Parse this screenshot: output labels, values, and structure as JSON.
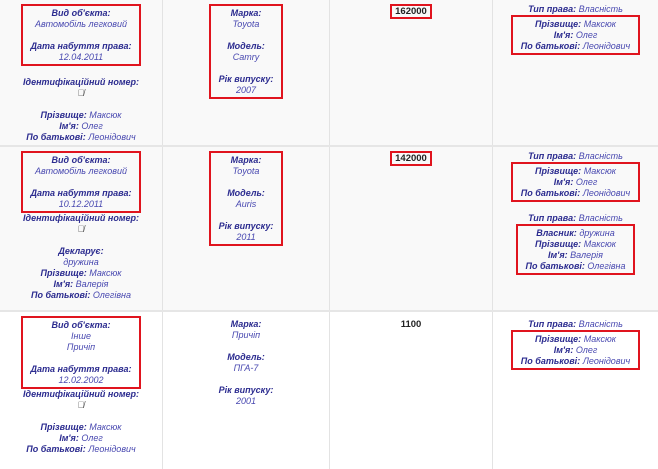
{
  "rows": [
    {
      "cells": [
        [
          {
            "box": true,
            "items": [
              {
                "t": "s",
                "l": "Вид об'єкта:",
                "v": [
                  "Автомобіль легковий"
                ]
              },
              {
                "t": "gap"
              },
              {
                "t": "s",
                "l": "Дата набуття права:",
                "v": [
                  "12.04.2011"
                ]
              }
            ]
          },
          {
            "items": [
              {
                "t": "gap"
              },
              {
                "t": "s",
                "l": "Ідентифікаційний номер:",
                "v": []
              },
              {
                "t": "icon",
                "icon": "hidden-eye-icon"
              },
              {
                "t": "gap"
              },
              {
                "t": "i",
                "l": "Прізвище:",
                "v": "Максюк"
              },
              {
                "t": "i",
                "l": "Ім'я:",
                "v": "Олег"
              },
              {
                "t": "i",
                "l": "По батькові:",
                "v": "Леонідович"
              }
            ]
          }
        ],
        [
          {
            "box": true,
            "items": [
              {
                "t": "s",
                "l": "Марка:",
                "v": [
                  "Toyota"
                ]
              },
              {
                "t": "gap"
              },
              {
                "t": "s",
                "l": "Модель:",
                "v": [
                  "Camry"
                ]
              },
              {
                "t": "gap"
              },
              {
                "t": "s",
                "l": "Рік випуску:",
                "v": [
                  "2007"
                ]
              }
            ]
          }
        ],
        [
          {
            "box": true,
            "nb": true,
            "items": [
              {
                "t": "num",
                "v": "162000"
              }
            ]
          }
        ],
        [
          {
            "items": [
              {
                "t": "i",
                "l": "Тип права:",
                "v": "Власність"
              }
            ]
          },
          {
            "box": true,
            "items": [
              {
                "t": "i",
                "l": "Прізвище:",
                "v": "Максюк"
              },
              {
                "t": "i",
                "l": "Ім'я:",
                "v": "Олег"
              },
              {
                "t": "i",
                "l": "По батькові:",
                "v": "Леонідович"
              }
            ]
          }
        ]
      ]
    },
    {
      "cells": [
        [
          {
            "box": true,
            "items": [
              {
                "t": "s",
                "l": "Вид об'єкта:",
                "v": [
                  "Автомобіль легковий"
                ]
              },
              {
                "t": "gap"
              },
              {
                "t": "s",
                "l": "Дата набуття права:",
                "v": [
                  "10.12.2011"
                ]
              }
            ]
          },
          {
            "items": [
              {
                "t": "s",
                "l": "Ідентифікаційний номер:",
                "v": []
              },
              {
                "t": "icon",
                "icon": "hidden-eye-icon"
              },
              {
                "t": "gap"
              },
              {
                "t": "s",
                "l": "Декларує:",
                "v": [
                  "дружина"
                ]
              },
              {
                "t": "i",
                "l": "Прізвище:",
                "v": "Максюк"
              },
              {
                "t": "i",
                "l": "Ім'я:",
                "v": "Валерія"
              },
              {
                "t": "i",
                "l": "По батькові:",
                "v": "Олегівна"
              }
            ]
          }
        ],
        [
          {
            "box": true,
            "items": [
              {
                "t": "s",
                "l": "Марка:",
                "v": [
                  "Toyota"
                ]
              },
              {
                "t": "gap"
              },
              {
                "t": "s",
                "l": "Модель:",
                "v": [
                  "Auris"
                ]
              },
              {
                "t": "gap"
              },
              {
                "t": "s",
                "l": "Рік випуску:",
                "v": [
                  "2011"
                ]
              }
            ]
          }
        ],
        [
          {
            "box": true,
            "nb": true,
            "items": [
              {
                "t": "num",
                "v": "142000"
              }
            ]
          }
        ],
        [
          {
            "items": [
              {
                "t": "i",
                "l": "Тип права:",
                "v": "Власність"
              }
            ]
          },
          {
            "box": true,
            "items": [
              {
                "t": "i",
                "l": "Прізвище:",
                "v": "Максюк"
              },
              {
                "t": "i",
                "l": "Ім'я:",
                "v": "Олег"
              },
              {
                "t": "i",
                "l": "По батькові:",
                "v": "Леонідович"
              }
            ]
          },
          {
            "items": [
              {
                "t": "gap"
              },
              {
                "t": "i",
                "l": "Тип права:",
                "v": "Власність"
              }
            ]
          },
          {
            "box": true,
            "items": [
              {
                "t": "i",
                "l": "Власник:",
                "v": "дружина"
              },
              {
                "t": "i",
                "l": "Прізвище:",
                "v": "Максюк"
              },
              {
                "t": "i",
                "l": "Ім'я:",
                "v": "Валерія"
              },
              {
                "t": "i",
                "l": "По батькові:",
                "v": "Олегівна"
              }
            ]
          }
        ]
      ]
    },
    {
      "cells": [
        [
          {
            "box": true,
            "items": [
              {
                "t": "s",
                "l": "Вид об'єкта:",
                "v": [
                  "Інше",
                  "Причіп"
                ]
              },
              {
                "t": "gap"
              },
              {
                "t": "s",
                "l": "Дата набуття права:",
                "v": [
                  "12.02.2002"
                ]
              }
            ]
          },
          {
            "items": [
              {
                "t": "s",
                "l": "Ідентифікаційний номер:",
                "v": []
              },
              {
                "t": "icon",
                "icon": "hidden-eye-icon"
              },
              {
                "t": "gap"
              },
              {
                "t": "i",
                "l": "Прізвище:",
                "v": "Максюк"
              },
              {
                "t": "i",
                "l": "Ім'я:",
                "v": "Олег"
              },
              {
                "t": "i",
                "l": "По батькові:",
                "v": "Леонідович"
              }
            ]
          }
        ],
        [
          {
            "items": [
              {
                "t": "gap",
                "h": 3
              },
              {
                "t": "s",
                "l": "Марка:",
                "v": [
                  "Причіп"
                ]
              },
              {
                "t": "gap"
              },
              {
                "t": "s",
                "l": "Модель:",
                "v": [
                  "ПГА-7"
                ]
              },
              {
                "t": "gap"
              },
              {
                "t": "s",
                "l": "Рік випуску:",
                "v": [
                  "2001"
                ]
              }
            ]
          }
        ],
        [
          {
            "items": [
              {
                "t": "gap",
                "h": 3
              },
              {
                "t": "num",
                "v": "1100"
              }
            ]
          }
        ],
        [
          {
            "items": [
              {
                "t": "gap",
                "h": 3
              },
              {
                "t": "i",
                "l": "Тип права:",
                "v": "Власність"
              }
            ]
          },
          {
            "box": true,
            "items": [
              {
                "t": "i",
                "l": "Прізвище:",
                "v": "Максюк"
              },
              {
                "t": "i",
                "l": "Ім'я:",
                "v": "Олег"
              },
              {
                "t": "i",
                "l": "По батькові:",
                "v": "Леонідович"
              }
            ]
          }
        ]
      ]
    }
  ],
  "colors": {
    "highlight_border": "#e0141e",
    "label": "#2b2b8f",
    "value": "#4848b0"
  }
}
